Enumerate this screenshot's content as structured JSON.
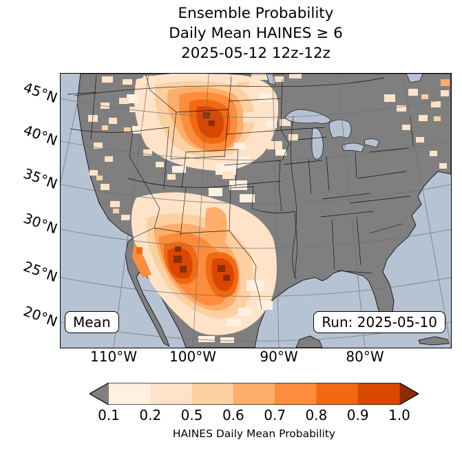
{
  "title": {
    "line1": "Ensemble Probability",
    "line2": "Daily Mean HAINES ≥ 6",
    "line3": "2025-05-12 12z-12z"
  },
  "map": {
    "lat_labels": [
      "45°N",
      "40°N",
      "35°N",
      "30°N",
      "25°N",
      "20°N"
    ],
    "lon_labels": [
      "110°W",
      "100°W",
      "90°W",
      "80°W"
    ],
    "annotations": {
      "mean": "Mean",
      "run": "Run: 2025-05-10"
    }
  },
  "colorbar": {
    "ticks": [
      "0.1",
      "0.2",
      "0.5",
      "0.6",
      "0.7",
      "0.8",
      "0.9",
      "1.0"
    ],
    "label": "HAINES Daily Mean Probability",
    "segment_colors": [
      "#fff0e0",
      "#fee3c8",
      "#fdd0a2",
      "#fdae6b",
      "#fd8d3c",
      "#f16913",
      "#d94801"
    ],
    "under_color": "#808080",
    "over_color": "#8c2d04"
  },
  "colors": {
    "ocean": "#b6c3d3",
    "land_nodata": "#7f7f7f"
  },
  "chart_data": {
    "type": "heatmap",
    "title": "Ensemble Probability Daily Mean HAINES ≥ 6, 2025-05-12 12z-12z",
    "run": "2025-05-10",
    "colormap_levels": [
      0.1,
      0.2,
      0.5,
      0.6,
      0.7,
      0.8,
      0.9,
      1.0
    ],
    "colorbar_label": "HAINES Daily Mean Probability",
    "lat_ticks": [
      "45°N",
      "40°N",
      "35°N",
      "30°N",
      "25°N",
      "20°N"
    ],
    "lon_ticks": [
      "110°W",
      "100°W",
      "90°W",
      "80°W"
    ],
    "regions": [
      {
        "area": "eastern Montana / Wyoming / western Dakotas",
        "probability": "0.6-0.9"
      },
      {
        "area": "southeastern Arizona / Sonora (Mexico)",
        "probability": "0.8-1.0"
      },
      {
        "area": "Chihuahua / southern New Mexico / far west Texas",
        "probability": "0.8-1.0"
      },
      {
        "area": "northern Baja California",
        "probability": "0.6-0.8"
      },
      {
        "area": "central and south Texas, northern Mexico",
        "probability": "0.1-0.5"
      },
      {
        "area": "scattered: Pacific states, Great Basin, upper Midwest, Northeast, southern Canada",
        "probability": "0.1-0.5"
      },
      {
        "area": "remaining land shaded gray",
        "probability": "< 0.1"
      }
    ]
  }
}
